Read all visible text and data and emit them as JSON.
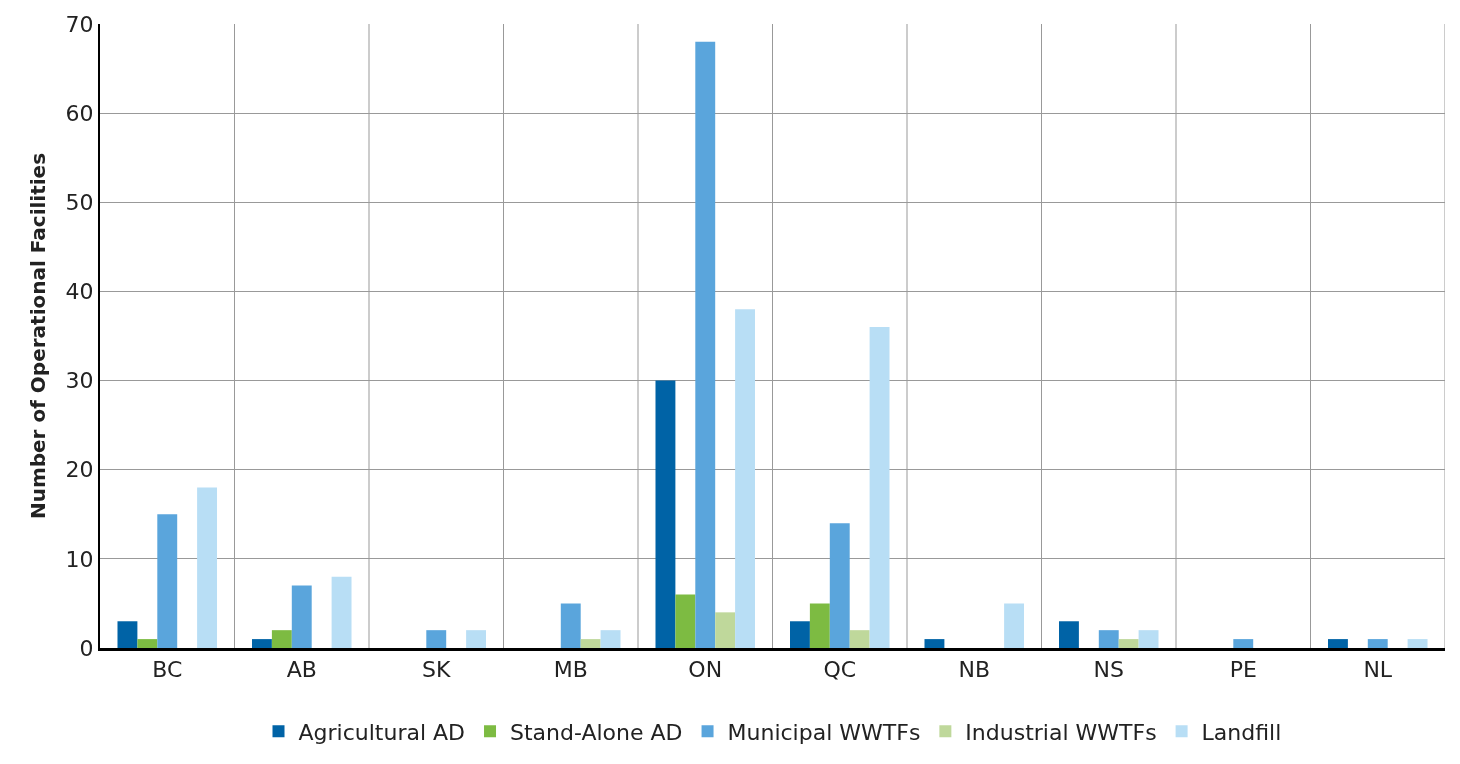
{
  "chart_data": {
    "type": "bar",
    "ylabel": "Number of Operational Facilities",
    "categories": [
      "BC",
      "AB",
      "SK",
      "MB",
      "ON",
      "QC",
      "NB",
      "NS",
      "PE",
      "NL"
    ],
    "series": [
      {
        "name": "Agricultural AD",
        "color": "#0063a6",
        "values": [
          3,
          1,
          0,
          0,
          30,
          3,
          1,
          3,
          0,
          1
        ]
      },
      {
        "name": "Stand-Alone AD",
        "color": "#7dbb42",
        "values": [
          1,
          2,
          0,
          0,
          6,
          5,
          0,
          0,
          0,
          0
        ]
      },
      {
        "name": "Municipal WWTFs",
        "color": "#5aa5dc",
        "values": [
          15,
          7,
          2,
          5,
          68,
          14,
          0,
          2,
          1,
          1
        ]
      },
      {
        "name": "Industrial WWTFs",
        "color": "#bfd89b",
        "values": [
          0,
          0,
          0,
          1,
          4,
          2,
          0,
          1,
          0,
          0
        ]
      },
      {
        "name": "Landfill",
        "color": "#b8def5",
        "values": [
          18,
          8,
          2,
          2,
          38,
          36,
          5,
          2,
          0,
          1
        ]
      }
    ],
    "ylim": [
      0,
      70
    ],
    "yticks": [
      0,
      10,
      20,
      30,
      40,
      50,
      60,
      70
    ],
    "grid": true,
    "legend": "bottom"
  }
}
